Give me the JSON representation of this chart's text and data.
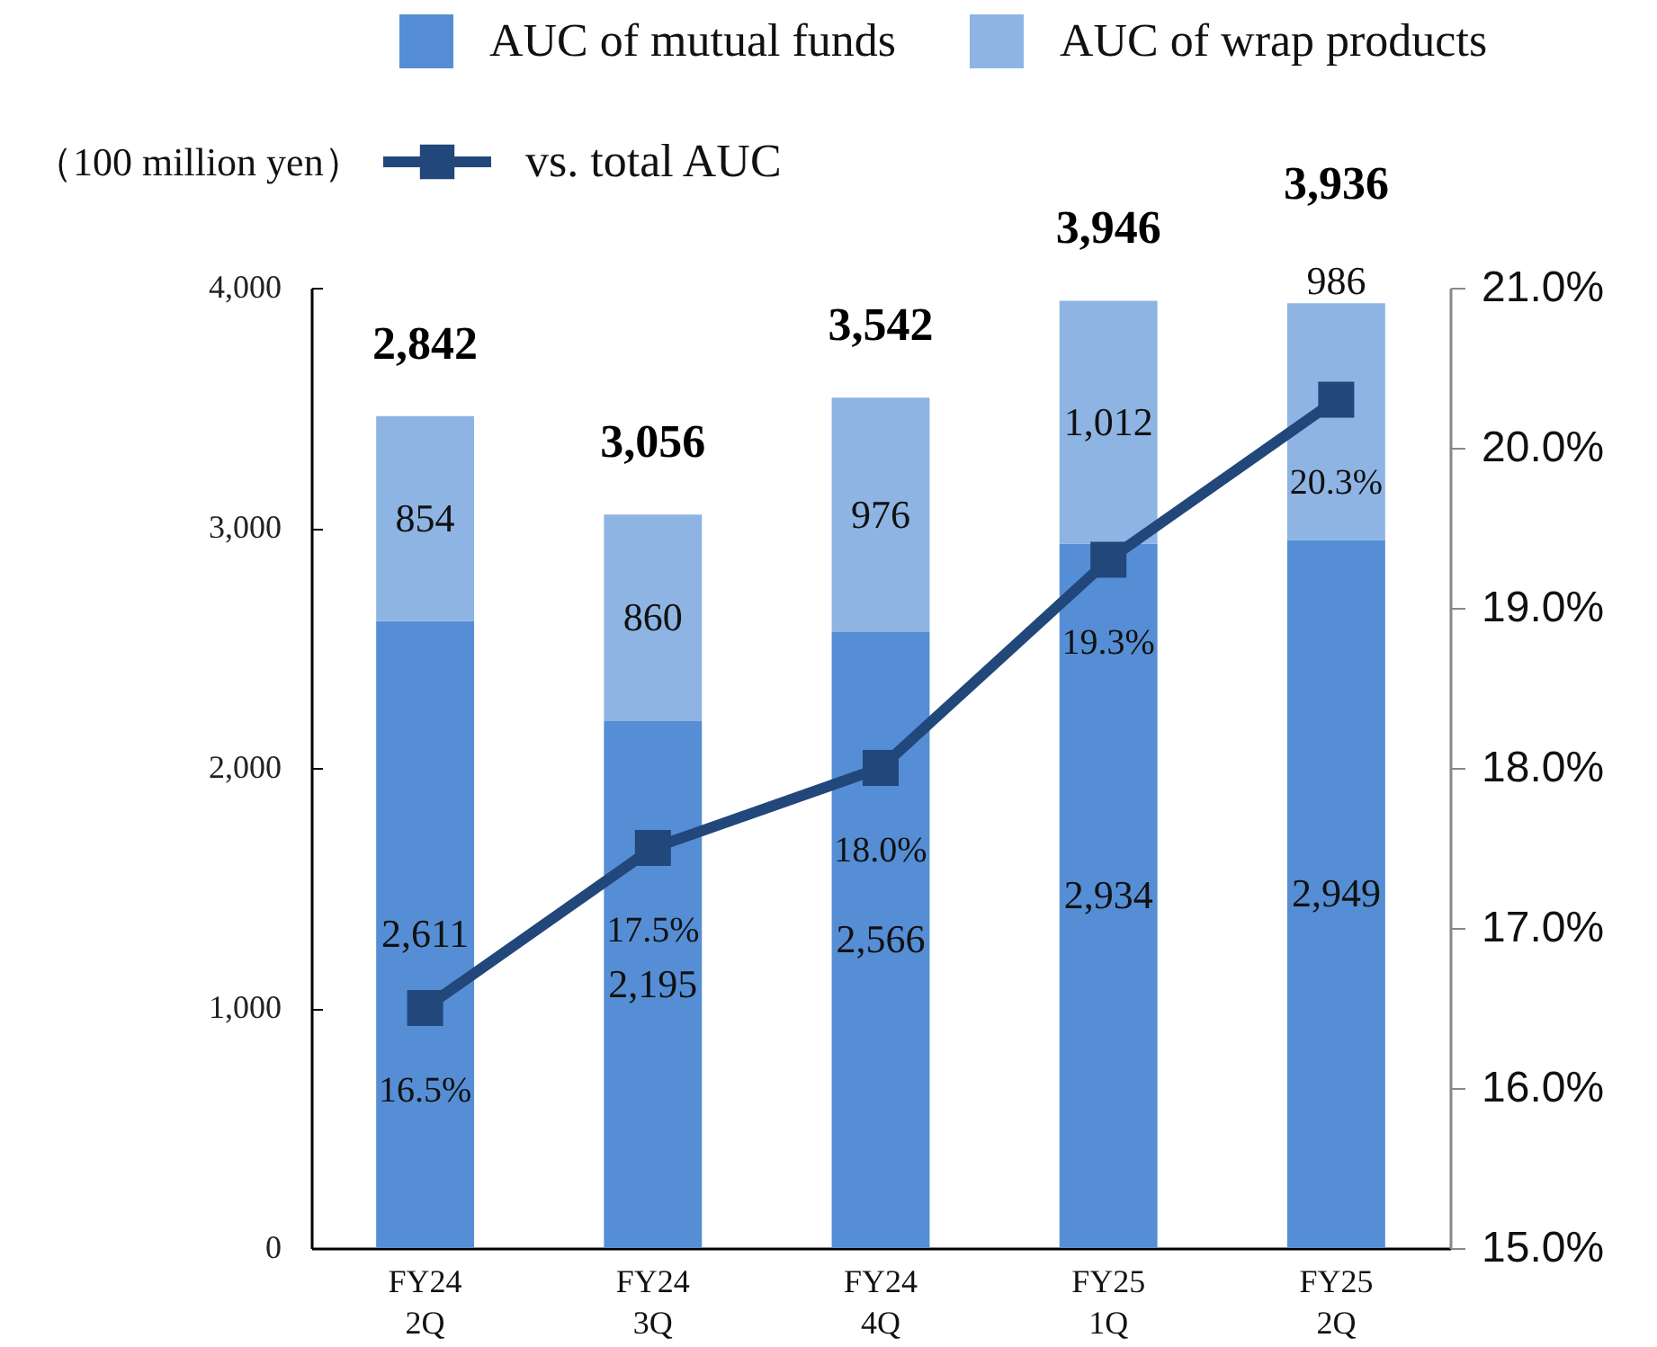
{
  "chart_data": {
    "type": "bar",
    "ylabel": "（100 million yen）",
    "categories": [
      "FY24\n2Q",
      "FY24\n3Q",
      "FY24\n4Q",
      "FY25\n1Q",
      "FY25\n2Q"
    ],
    "series": [
      {
        "name": "AUC of mutual funds",
        "color": "#558ed5",
        "values": [
          2611,
          2195,
          2566,
          2934,
          2949
        ],
        "value_labels": [
          "2,611",
          "2,195",
          "2,566",
          "2,934",
          "2,949"
        ]
      },
      {
        "name": "AUC of wrap products",
        "color": "#8eb4e3",
        "values": [
          854,
          860,
          976,
          1012,
          986
        ],
        "value_labels": [
          "854",
          "860",
          "976",
          "1,012",
          "986"
        ]
      },
      {
        "name": "vs. total AUC",
        "type": "line",
        "axis": "y2",
        "color": "#21477b",
        "values": [
          16.5,
          17.5,
          18.0,
          19.3,
          20.3
        ],
        "value_labels": [
          "16.5%",
          "17.5%",
          "18.0%",
          "19.3%",
          "20.3%"
        ]
      }
    ],
    "stacked": true,
    "annotations": [
      {
        "text": "2,842",
        "x": "FY24\n2Q",
        "y": 3465
      },
      {
        "text": "3,056",
        "x": "FY24\n3Q",
        "y": 3055
      },
      {
        "text": "3,542",
        "x": "FY24\n4Q",
        "y": 3542
      },
      {
        "text": "3,946",
        "x": "FY25\n1Q",
        "y": 3946
      },
      {
        "text": "3,936",
        "x": "FY25\n2Q",
        "y": 3935
      }
    ],
    "ylim": [
      0,
      4000
    ],
    "yticks": [
      0,
      {
        "value": 1000,
        "label": "1,000"
      },
      {
        "value": 2000,
        "label": "2,000"
      },
      {
        "value": 3000,
        "label": "3,000"
      },
      {
        "value": 4000,
        "label": "4,000"
      }
    ],
    "y2lim": [
      15,
      21
    ],
    "y2ticks": [
      {
        "value": 15,
        "label": "15.0%"
      },
      {
        "value": 16,
        "label": "16.0%"
      },
      {
        "value": 17,
        "label": "17.0%"
      },
      {
        "value": 18,
        "label": "18.0%"
      },
      {
        "value": 19,
        "label": "19.0%"
      },
      {
        "value": 20,
        "label": "20.0%"
      },
      {
        "value": 21,
        "label": "21.0%"
      }
    ],
    "legend": "top",
    "marker": "square",
    "line_style": "solid"
  }
}
